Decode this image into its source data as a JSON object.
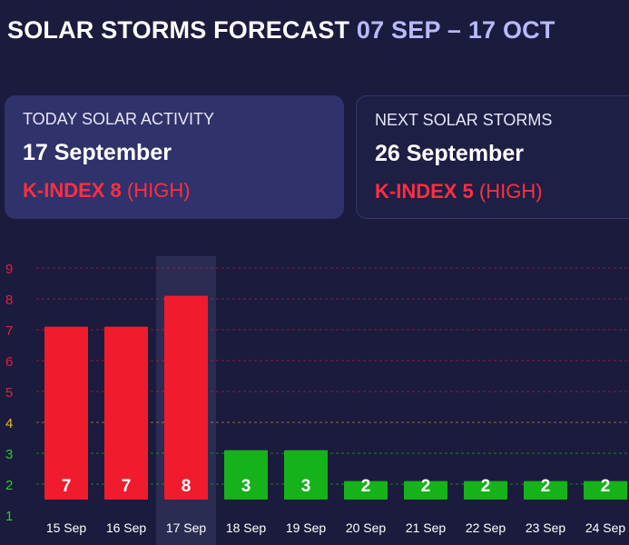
{
  "header": {
    "title": "SOLAR STORMS FORECAST",
    "date_range": "07 SEP – 17 OCT"
  },
  "today_card": {
    "label": "TODAY SOLAR ACTIVITY",
    "date": "17 September",
    "kindex_label": "K-INDEX 8",
    "kindex_level": "(HIGH)"
  },
  "next_card": {
    "label": "NEXT SOLAR STORMS",
    "date": "26 September",
    "kindex_label": "K-INDEX 5",
    "kindex_level": "(HIGH)"
  },
  "colors": {
    "background": "#1b1b3d",
    "storm_bar": "#f01c2e",
    "calm_bar": "#16b21a",
    "storm_tick": "#e0223c",
    "threshold_tick": "#e8b923",
    "calm_tick": "#2ec82e",
    "highlight_column": "#2a2c52"
  },
  "chart_data": {
    "type": "bar",
    "categories": [
      "15 Sep",
      "16 Sep",
      "17 Sep",
      "18 Sep",
      "19 Sep",
      "20 Sep",
      "21 Sep",
      "22 Sep",
      "23 Sep",
      "24 Sep"
    ],
    "values": [
      7,
      7,
      8,
      3,
      3,
      2,
      2,
      2,
      2,
      2
    ],
    "y_ticks": [
      1,
      2,
      3,
      4,
      5,
      6,
      7,
      8,
      9
    ],
    "ylim": [
      1,
      9
    ],
    "highlighted_category": "17 Sep",
    "grid": "dashed horizontal lines",
    "title": "",
    "xlabel": "",
    "ylabel": ""
  }
}
